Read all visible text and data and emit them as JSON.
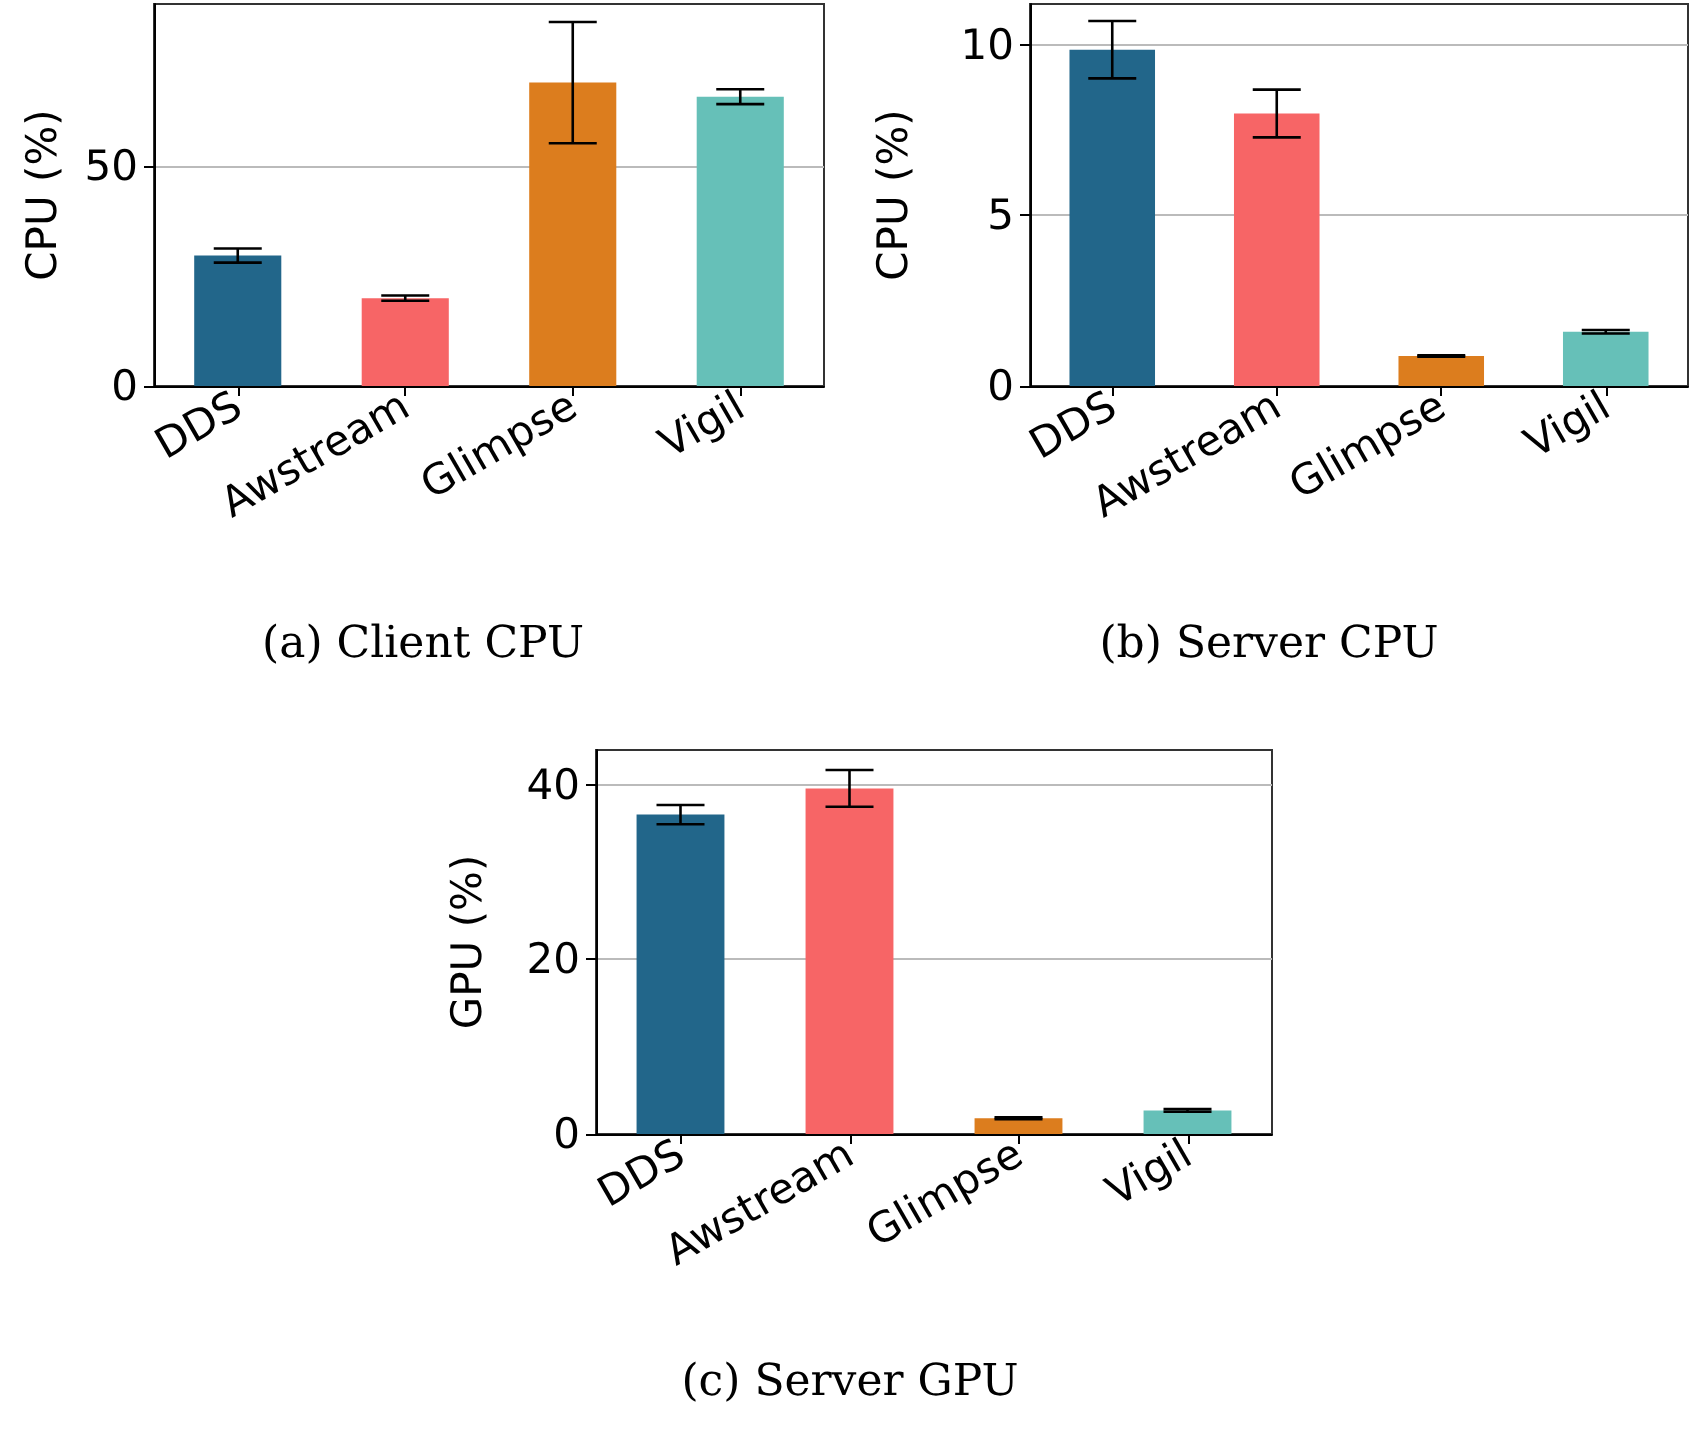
{
  "chart_data": [
    {
      "type": "bar",
      "title": "(a) Client CPU",
      "ylabel": "CPU (%)",
      "categories": [
        "DDS",
        "Awstream",
        "Glimpse",
        "Vigil"
      ],
      "values": [
        29.7,
        20.0,
        69.1,
        65.9
      ],
      "errors": [
        1.6,
        0.6,
        13.8,
        1.7
      ],
      "colors": [
        "#22668a",
        "#f76566",
        "#dc7d1e",
        "#66c0b8"
      ],
      "ylim": [
        0,
        87
      ],
      "yticks": [
        0,
        50
      ],
      "grid": "y"
    },
    {
      "type": "bar",
      "title": "(b) Server CPU",
      "ylabel": "CPU (%)",
      "categories": [
        "DDS",
        "Awstream",
        "Glimpse",
        "Vigil"
      ],
      "values": [
        9.86,
        7.99,
        0.88,
        1.59
      ],
      "errors": [
        0.84,
        0.7,
        0.02,
        0.05
      ],
      "colors": [
        "#22668a",
        "#f76566",
        "#dc7d1e",
        "#66c0b8"
      ],
      "ylim": [
        0,
        11.2
      ],
      "yticks": [
        0,
        5,
        10
      ],
      "grid": "y"
    },
    {
      "type": "bar",
      "title": "(c) Server GPU",
      "ylabel": "GPU (%)",
      "categories": [
        "DDS",
        "Awstream",
        "Glimpse",
        "Vigil"
      ],
      "values": [
        36.6,
        39.6,
        1.8,
        2.7
      ],
      "errors": [
        1.1,
        2.1,
        0.1,
        0.15
      ],
      "colors": [
        "#22668a",
        "#f76566",
        "#dc7d1e",
        "#66c0b8"
      ],
      "ylim": [
        0,
        44
      ],
      "yticks": [
        0,
        20,
        40
      ],
      "grid": "y"
    }
  ]
}
